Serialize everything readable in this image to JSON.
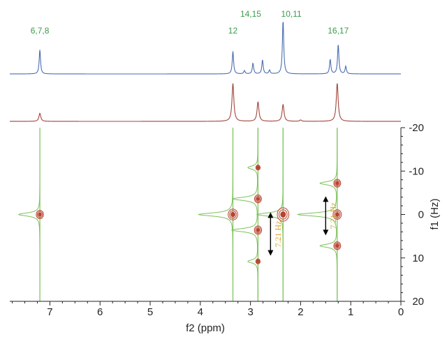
{
  "colors": {
    "blue_trace": "#4a6db0",
    "red_trace": "#a0453a",
    "green": "#7cc25a",
    "contour": "#b8432f",
    "peak_label": "#3a9a4a",
    "annotation": "#d9a21f",
    "axis": "#222222"
  },
  "chart_data": {
    "type": "2d-nmr",
    "xlabel": "f2 (ppm)",
    "ylabel": "f1 (Hz)",
    "xlim": [
      7.8,
      0
    ],
    "ylim": [
      -20,
      20
    ],
    "x_ticks": [
      "7",
      "6",
      "5",
      "4",
      "3",
      "2",
      "1",
      "0"
    ],
    "y_ticks": [
      "-20",
      "-10",
      "0",
      "10",
      "20"
    ],
    "peak_labels": [
      {
        "text": "6,7,8",
        "x": 7.2
      },
      {
        "text": "12",
        "x": 3.35
      },
      {
        "text": "14,15",
        "x": 2.8
      },
      {
        "text": "10,11",
        "x": 2.38
      },
      {
        "text": "16,17",
        "x": 1.25
      }
    ],
    "top_spectrum_peaks": [
      {
        "x": 7.2,
        "h": 0.45
      },
      {
        "x": 3.35,
        "h": 0.42
      },
      {
        "x": 3.12,
        "h": 0.06
      },
      {
        "x": 2.95,
        "h": 0.2
      },
      {
        "x": 2.76,
        "h": 0.26
      },
      {
        "x": 2.62,
        "h": 0.07
      },
      {
        "x": 2.35,
        "h": 1.0
      },
      {
        "x": 1.41,
        "h": 0.27
      },
      {
        "x": 1.25,
        "h": 0.55
      },
      {
        "x": 1.1,
        "h": 0.14
      }
    ],
    "projection_peaks": [
      {
        "x": 7.2,
        "h": 0.18
      },
      {
        "x": 3.35,
        "h": 0.85
      },
      {
        "x": 2.85,
        "h": 0.44
      },
      {
        "x": 2.35,
        "h": 0.38
      },
      {
        "x": 2.0,
        "h": 0.03
      },
      {
        "x": 1.27,
        "h": 0.86
      }
    ],
    "f1_traces": [
      {
        "x": 7.2,
        "peaks": [
          {
            "y": 0,
            "w": 0.42
          }
        ]
      },
      {
        "x": 3.35,
        "peaks": [
          {
            "y": 0,
            "w": 0.68
          }
        ]
      },
      {
        "x": 2.85,
        "peaks": [
          {
            "y": -10.8,
            "w": 0.2
          },
          {
            "y": -3.6,
            "w": 0.5
          },
          {
            "y": 3.6,
            "w": 0.52
          },
          {
            "y": 10.8,
            "w": 0.2
          }
        ]
      },
      {
        "x": 2.35,
        "peaks": [
          {
            "y": 0,
            "w": 0.52
          }
        ]
      },
      {
        "x": 1.27,
        "peaks": [
          {
            "y": -7.2,
            "w": 0.34
          },
          {
            "y": 0,
            "w": 0.78
          },
          {
            "y": 7.2,
            "w": 0.34
          }
        ]
      }
    ],
    "contours": [
      {
        "x": 7.2,
        "y": 0,
        "size": 1.0
      },
      {
        "x": 3.35,
        "y": 0,
        "size": 1.3
      },
      {
        "x": 2.85,
        "y": -10.8,
        "size": 0.6
      },
      {
        "x": 2.85,
        "y": -3.6,
        "size": 0.95
      },
      {
        "x": 2.85,
        "y": 3.6,
        "size": 1.0
      },
      {
        "x": 2.85,
        "y": 10.8,
        "size": 0.6
      },
      {
        "x": 2.35,
        "y": 0,
        "size": 1.6
      },
      {
        "x": 1.27,
        "y": -7.2,
        "size": 0.95
      },
      {
        "x": 1.27,
        "y": 0,
        "size": 1.15
      },
      {
        "x": 1.27,
        "y": 7.2,
        "size": 0.95
      }
    ],
    "annotations": [
      {
        "text": "7.21 Hz",
        "x": 2.6,
        "y1": -0.5,
        "y2": 9.5
      },
      {
        "text": "7.21 Hz",
        "x": 1.5,
        "y1": -4.2,
        "y2": 4.8
      }
    ]
  }
}
